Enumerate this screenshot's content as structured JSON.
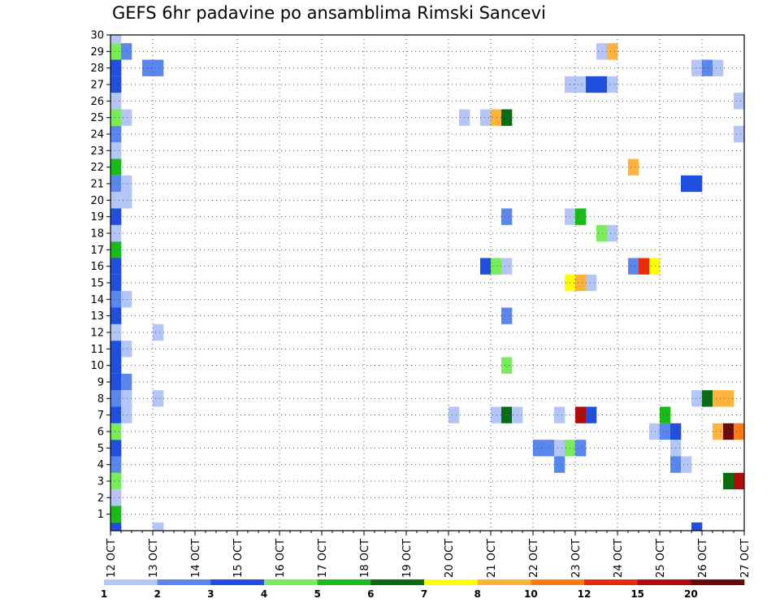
{
  "chart_data": {
    "type": "heatmap",
    "title": "GEFS 6hr padavine po ansamblima Rimski Sancevi",
    "xlabel": "",
    "ylabel": "",
    "y_ticks": [
      1,
      2,
      3,
      4,
      5,
      6,
      7,
      8,
      9,
      10,
      11,
      12,
      13,
      14,
      15,
      16,
      17,
      18,
      19,
      20,
      21,
      22,
      23,
      24,
      25,
      26,
      27,
      28,
      29,
      30
    ],
    "ylim": [
      0,
      30
    ],
    "x_ticks": [
      "12 OCT",
      "13 OCT",
      "14 OCT",
      "15 OCT",
      "16 OCT",
      "17 OCT",
      "18 OCT",
      "19 OCT",
      "20 OCT",
      "21 OCT",
      "22 OCT",
      "23 OCT",
      "24 OCT",
      "25 OCT",
      "26 OCT",
      "27 OCT"
    ],
    "time_step_hours": 6,
    "grid": true,
    "colorbar": {
      "placement": "bottom",
      "levels": [
        "1",
        "2",
        "3",
        "4",
        "5",
        "6",
        "7",
        "8",
        "10",
        "12",
        "15",
        "20"
      ],
      "colors": [
        "#b4c6f8",
        "#5a86f0",
        "#1f4fe0",
        "#79ec5a",
        "#18bc18",
        "#0a6c12",
        "#ffff00",
        "#ffb33a",
        "#ff7a10",
        "#e82c0c",
        "#b00c0c",
        "#6c0a0a"
      ]
    },
    "cells": [
      {
        "t": 0,
        "m": 0,
        "c": 3
      },
      {
        "t": 0,
        "m": 1,
        "c": 5
      },
      {
        "t": 0,
        "m": 2,
        "c": 1
      },
      {
        "t": 0,
        "m": 3,
        "c": 4
      },
      {
        "t": 0,
        "m": 4,
        "c": 2
      },
      {
        "t": 0,
        "m": 5,
        "c": 3
      },
      {
        "t": 0,
        "m": 6,
        "c": 4
      },
      {
        "t": 0,
        "m": 7,
        "c": 3
      },
      {
        "t": 0,
        "m": 8,
        "c": 2
      },
      {
        "t": 0,
        "m": 9,
        "c": 3
      },
      {
        "t": 0,
        "m": 10,
        "c": 3
      },
      {
        "t": 0,
        "m": 11,
        "c": 3
      },
      {
        "t": 0,
        "m": 12,
        "c": 1
      },
      {
        "t": 0,
        "m": 13,
        "c": 3
      },
      {
        "t": 0,
        "m": 14,
        "c": 2
      },
      {
        "t": 0,
        "m": 15,
        "c": 3
      },
      {
        "t": 0,
        "m": 16,
        "c": 3
      },
      {
        "t": 0,
        "m": 17,
        "c": 5
      },
      {
        "t": 0,
        "m": 18,
        "c": 1
      },
      {
        "t": 0,
        "m": 19,
        "c": 3
      },
      {
        "t": 0,
        "m": 20,
        "c": 1
      },
      {
        "t": 0,
        "m": 21,
        "c": 2
      },
      {
        "t": 0,
        "m": 22,
        "c": 5
      },
      {
        "t": 0,
        "m": 23,
        "c": 1
      },
      {
        "t": 0,
        "m": 24,
        "c": 2
      },
      {
        "t": 0,
        "m": 25,
        "c": 4
      },
      {
        "t": 0,
        "m": 26,
        "c": 1
      },
      {
        "t": 0,
        "m": 27,
        "c": 3
      },
      {
        "t": 0,
        "m": 28,
        "c": 3
      },
      {
        "t": 0,
        "m": 29,
        "c": 4
      },
      {
        "t": 0,
        "m": 30,
        "c": 1
      },
      {
        "t": 1,
        "m": 8,
        "c": 1
      },
      {
        "t": 1,
        "m": 9,
        "c": 2
      },
      {
        "t": 1,
        "m": 7,
        "c": 1
      },
      {
        "t": 1,
        "m": 11,
        "c": 1
      },
      {
        "t": 1,
        "m": 14,
        "c": 1
      },
      {
        "t": 1,
        "m": 20,
        "c": 1
      },
      {
        "t": 1,
        "m": 21,
        "c": 1
      },
      {
        "t": 1,
        "m": 25,
        "c": 1
      },
      {
        "t": 1,
        "m": 29,
        "c": 2
      },
      {
        "t": 3,
        "m": 28,
        "c": 2
      },
      {
        "t": 4,
        "m": 28,
        "c": 2
      },
      {
        "t": 4,
        "m": 0,
        "c": 1
      },
      {
        "t": 4,
        "m": 8,
        "c": 1
      },
      {
        "t": 4,
        "m": 12,
        "c": 1
      },
      {
        "t": 32,
        "m": 7,
        "c": 1
      },
      {
        "t": 33,
        "m": 25,
        "c": 1
      },
      {
        "t": 35,
        "m": 25,
        "c": 1
      },
      {
        "t": 35,
        "m": 16,
        "c": 3
      },
      {
        "t": 36,
        "m": 16,
        "c": 4
      },
      {
        "t": 36,
        "m": 25,
        "c": 8
      },
      {
        "t": 37,
        "m": 25,
        "c": 6
      },
      {
        "t": 37,
        "m": 16,
        "c": 1
      },
      {
        "t": 36,
        "m": 7,
        "c": 1
      },
      {
        "t": 37,
        "m": 7,
        "c": 6
      },
      {
        "t": 38,
        "m": 7,
        "c": 1
      },
      {
        "t": 37,
        "m": 19,
        "c": 2
      },
      {
        "t": 37,
        "m": 13,
        "c": 2
      },
      {
        "t": 37,
        "m": 10,
        "c": 4
      },
      {
        "t": 40,
        "m": 5,
        "c": 2
      },
      {
        "t": 41,
        "m": 5,
        "c": 2
      },
      {
        "t": 42,
        "m": 5,
        "c": 1
      },
      {
        "t": 43,
        "m": 5,
        "c": 4
      },
      {
        "t": 44,
        "m": 5,
        "c": 2
      },
      {
        "t": 42,
        "m": 4,
        "c": 2
      },
      {
        "t": 42,
        "m": 7,
        "c": 1
      },
      {
        "t": 43,
        "m": 15,
        "c": 7
      },
      {
        "t": 44,
        "m": 15,
        "c": 8
      },
      {
        "t": 45,
        "m": 15,
        "c": 1
      },
      {
        "t": 43,
        "m": 19,
        "c": 1
      },
      {
        "t": 44,
        "m": 19,
        "c": 5
      },
      {
        "t": 43,
        "m": 27,
        "c": 1
      },
      {
        "t": 44,
        "m": 27,
        "c": 1
      },
      {
        "t": 45,
        "m": 27,
        "c": 3
      },
      {
        "t": 46,
        "m": 27,
        "c": 3
      },
      {
        "t": 47,
        "m": 27,
        "c": 1
      },
      {
        "t": 44,
        "m": 7,
        "c": 11
      },
      {
        "t": 45,
        "m": 7,
        "c": 3
      },
      {
        "t": 46,
        "m": 18,
        "c": 4
      },
      {
        "t": 47,
        "m": 18,
        "c": 1
      },
      {
        "t": 46,
        "m": 29,
        "c": 1
      },
      {
        "t": 47,
        "m": 29,
        "c": 8
      },
      {
        "t": 49,
        "m": 22,
        "c": 8
      },
      {
        "t": 49,
        "m": 16,
        "c": 2
      },
      {
        "t": 50,
        "m": 16,
        "c": 10
      },
      {
        "t": 51,
        "m": 16,
        "c": 7
      },
      {
        "t": 51,
        "m": 6,
        "c": 1
      },
      {
        "t": 52,
        "m": 6,
        "c": 2
      },
      {
        "t": 53,
        "m": 6,
        "c": 3
      },
      {
        "t": 52,
        "m": 7,
        "c": 5
      },
      {
        "t": 53,
        "m": 5,
        "c": 1
      },
      {
        "t": 53,
        "m": 4,
        "c": 2
      },
      {
        "t": 54,
        "m": 4,
        "c": 1
      },
      {
        "t": 54,
        "m": 21,
        "c": 3
      },
      {
        "t": 55,
        "m": 21,
        "c": 3
      },
      {
        "t": 55,
        "m": 8,
        "c": 1
      },
      {
        "t": 56,
        "m": 8,
        "c": 6
      },
      {
        "t": 57,
        "m": 8,
        "c": 8
      },
      {
        "t": 58,
        "m": 8,
        "c": 8
      },
      {
        "t": 55,
        "m": 28,
        "c": 1
      },
      {
        "t": 56,
        "m": 28,
        "c": 2
      },
      {
        "t": 57,
        "m": 28,
        "c": 1
      },
      {
        "t": 55,
        "m": 0,
        "c": 3
      },
      {
        "t": 57,
        "m": 6,
        "c": 8
      },
      {
        "t": 58,
        "m": 6,
        "c": 12
      },
      {
        "t": 59,
        "m": 6,
        "c": 9
      },
      {
        "t": 58,
        "m": 3,
        "c": 6
      },
      {
        "t": 59,
        "m": 3,
        "c": 11
      },
      {
        "t": 59,
        "m": 26,
        "c": 1
      },
      {
        "t": 59,
        "m": 24,
        "c": 1
      }
    ]
  }
}
